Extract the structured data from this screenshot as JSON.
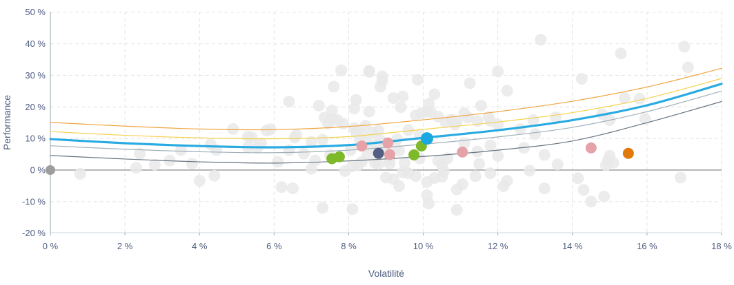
{
  "chart_data": {
    "type": "scatter",
    "title": "",
    "xlabel": "Volatilité",
    "ylabel": "Performance",
    "xlim": [
      0,
      18
    ],
    "ylim": [
      -20,
      50
    ],
    "grid": true,
    "legend": "none",
    "x_tick_values": [
      0,
      2,
      4,
      6,
      8,
      10,
      12,
      14,
      16,
      18
    ],
    "x_tick_labels": [
      "0 %",
      "2 %",
      "4 %",
      "6 %",
      "8 %",
      "10 %",
      "12 %",
      "14 %",
      "16 %",
      "18 %"
    ],
    "y_tick_values": [
      50,
      40,
      30,
      20,
      10,
      0,
      -10,
      -20
    ],
    "y_tick_labels": [
      "50 %",
      "40 %",
      "30 %",
      "20 %",
      "10 %",
      "0 %",
      "-10 %",
      "-20 %"
    ],
    "zero_line": {
      "y": 0,
      "color": "#9e9e9e"
    },
    "curves": [
      {
        "name": "band-lower-outer",
        "color": "#66737f",
        "width": 1.2,
        "x": [
          0,
          2,
          4,
          6,
          8,
          10,
          12,
          14,
          16,
          18
        ],
        "y": [
          4.6,
          3.5,
          2.6,
          2.2,
          2.9,
          4.3,
          6.3,
          9.2,
          15.0,
          21.7
        ]
      },
      {
        "name": "band-lower-inner",
        "color": "#9fb0ba",
        "width": 1.2,
        "x": [
          0,
          2,
          4,
          6,
          8,
          10,
          12,
          14,
          16,
          18
        ],
        "y": [
          7.7,
          6.6,
          5.8,
          5.5,
          6.3,
          8.2,
          10.5,
          13.5,
          18.5,
          25.0
        ]
      },
      {
        "name": "band-upper-inner",
        "color": "#f4d24d",
        "width": 1.2,
        "x": [
          0,
          2,
          4,
          6,
          8,
          10,
          12,
          14,
          16,
          18
        ],
        "y": [
          12.2,
          11.0,
          10.2,
          9.9,
          10.6,
          12.9,
          15.2,
          18.2,
          22.7,
          29.0
        ]
      },
      {
        "name": "band-upper-outer",
        "color": "#f0a43f",
        "width": 1.2,
        "x": [
          0,
          2,
          4,
          6,
          8,
          10,
          12,
          14,
          16,
          18
        ],
        "y": [
          15.1,
          13.9,
          13.0,
          12.8,
          13.8,
          15.9,
          18.5,
          21.8,
          26.3,
          32.2
        ]
      },
      {
        "name": "expected-performance",
        "color": "#29abe2",
        "width": 3.2,
        "x": [
          0,
          2,
          4,
          6,
          8,
          10,
          12,
          14,
          16,
          18
        ],
        "y": [
          9.8,
          8.5,
          7.6,
          7.2,
          7.9,
          10.2,
          12.6,
          15.8,
          20.5,
          27.3
        ]
      }
    ],
    "cloud": {
      "name": "simulated-portfolios",
      "color": "#e9e9e9",
      "radius": 8.5,
      "opacity": 0.85,
      "points": [
        [
          0.8,
          -1.2
        ],
        [
          2.3,
          0.7
        ],
        [
          2.4,
          5.2
        ],
        [
          2.8,
          1.7
        ],
        [
          3.2,
          3.0
        ],
        [
          3.5,
          6.3
        ],
        [
          3.8,
          2.0
        ],
        [
          4.0,
          -3.4
        ],
        [
          4.3,
          8.1
        ],
        [
          4.4,
          -1.8
        ],
        [
          4.45,
          6.3
        ],
        [
          4.9,
          13.0
        ],
        [
          5.3,
          10.6
        ],
        [
          5.3,
          7.2
        ],
        [
          5.4,
          10.3
        ],
        [
          5.55,
          7.0
        ],
        [
          5.65,
          8.5
        ],
        [
          5.8,
          12.5
        ],
        [
          5.9,
          12.9
        ],
        [
          6.1,
          2.6
        ],
        [
          6.2,
          -5.4
        ],
        [
          6.4,
          6.3
        ],
        [
          6.4,
          21.7
        ],
        [
          6.5,
          -5.8
        ],
        [
          6.55,
          10.3
        ],
        [
          6.6,
          11.1
        ],
        [
          6.8,
          5.2
        ],
        [
          7.0,
          8.9
        ],
        [
          7.0,
          0.4
        ],
        [
          7.1,
          3.0
        ],
        [
          7.2,
          20.4
        ],
        [
          7.3,
          9.6
        ],
        [
          7.3,
          -12.0
        ],
        [
          7.35,
          16.6
        ],
        [
          7.45,
          14.7
        ],
        [
          7.5,
          4.8
        ],
        [
          7.55,
          18.8
        ],
        [
          7.55,
          16.2
        ],
        [
          7.6,
          26.4
        ],
        [
          7.7,
          15.8
        ],
        [
          7.8,
          31.6
        ],
        [
          7.85,
          14.7
        ],
        [
          7.9,
          -0.3
        ],
        [
          8.05,
          6.3
        ],
        [
          8.1,
          1.2
        ],
        [
          8.1,
          -12.4
        ],
        [
          8.15,
          19.5
        ],
        [
          8.15,
          13.3
        ],
        [
          8.2,
          22.2
        ],
        [
          8.2,
          11.8
        ],
        [
          8.25,
          1.5
        ],
        [
          8.3,
          9.8
        ],
        [
          8.35,
          2.6
        ],
        [
          8.35,
          11.4
        ],
        [
          8.45,
          14.0
        ],
        [
          8.5,
          8.9
        ],
        [
          8.5,
          4.6
        ],
        [
          8.55,
          31.1
        ],
        [
          8.55,
          18.5
        ],
        [
          8.55,
          31.4
        ],
        [
          8.6,
          7.0
        ],
        [
          8.65,
          11.9
        ],
        [
          8.7,
          2.3
        ],
        [
          8.75,
          8.0
        ],
        [
          8.8,
          1.9
        ],
        [
          8.8,
          12.5
        ],
        [
          8.85,
          26.4
        ],
        [
          8.85,
          9.4
        ],
        [
          8.9,
          29.7
        ],
        [
          8.9,
          28.3
        ],
        [
          8.95,
          6.5
        ],
        [
          9.0,
          -2.4
        ],
        [
          9.1,
          2.0
        ],
        [
          9.1,
          3.4
        ],
        [
          9.2,
          -2.9
        ],
        [
          9.2,
          22.8
        ],
        [
          9.25,
          7.0
        ],
        [
          9.3,
          9.8
        ],
        [
          9.35,
          -5.1
        ],
        [
          9.35,
          6.1
        ],
        [
          9.4,
          19.9
        ],
        [
          9.45,
          23.3
        ],
        [
          9.45,
          -0.7
        ],
        [
          9.5,
          2.3
        ],
        [
          9.6,
          -1.0
        ],
        [
          9.6,
          12.6
        ],
        [
          9.8,
          -1.9
        ],
        [
          9.8,
          17.3
        ],
        [
          9.85,
          28.6
        ],
        [
          9.9,
          11.2
        ],
        [
          9.9,
          3.7
        ],
        [
          9.95,
          18.0
        ],
        [
          10.1,
          18.5
        ],
        [
          10.1,
          -3.8
        ],
        [
          10.1,
          -8.0
        ],
        [
          10.15,
          -10.6
        ],
        [
          10.15,
          21.0
        ],
        [
          10.2,
          18.4
        ],
        [
          10.3,
          24.0
        ],
        [
          10.3,
          -2.5
        ],
        [
          10.4,
          16.9
        ],
        [
          10.4,
          3.0
        ],
        [
          10.5,
          -2.1
        ],
        [
          10.5,
          1.5
        ],
        [
          10.55,
          -0.4
        ],
        [
          10.6,
          15.1
        ],
        [
          10.65,
          3.7
        ],
        [
          10.75,
          16.0
        ],
        [
          10.85,
          14.4
        ],
        [
          10.9,
          15.5
        ],
        [
          10.9,
          -6.2
        ],
        [
          10.9,
          -12.6
        ],
        [
          11.05,
          -4.5
        ],
        [
          11.1,
          18.0
        ],
        [
          11.1,
          8.5
        ],
        [
          11.2,
          16.6
        ],
        [
          11.25,
          27.5
        ],
        [
          11.4,
          -1.9
        ],
        [
          11.45,
          15.5
        ],
        [
          11.45,
          5.9
        ],
        [
          11.5,
          2.0
        ],
        [
          11.55,
          20.4
        ],
        [
          11.75,
          16.8
        ],
        [
          11.8,
          -1.0
        ],
        [
          11.8,
          15.5
        ],
        [
          11.8,
          7.8
        ],
        [
          12.0,
          14.4
        ],
        [
          12.0,
          4.5
        ],
        [
          12.0,
          31.2
        ],
        [
          12.15,
          -5.1
        ],
        [
          12.25,
          25.1
        ],
        [
          12.25,
          -3.4
        ],
        [
          12.6,
          13.0
        ],
        [
          12.7,
          7.0
        ],
        [
          12.85,
          -0.2
        ],
        [
          12.95,
          15.8
        ],
        [
          13.0,
          11.4
        ],
        [
          13.15,
          41.3
        ],
        [
          13.25,
          4.8
        ],
        [
          13.25,
          -5.8
        ],
        [
          13.55,
          16.7
        ],
        [
          13.6,
          1.8
        ],
        [
          14.15,
          -2.6
        ],
        [
          14.25,
          28.9
        ],
        [
          14.3,
          -6.3
        ],
        [
          14.5,
          -10.0
        ],
        [
          14.8,
          17.7
        ],
        [
          14.85,
          -8.4
        ],
        [
          14.9,
          1.5
        ],
        [
          14.95,
          3.0
        ],
        [
          15.0,
          15.8
        ],
        [
          15.0,
          4.5
        ],
        [
          15.1,
          2.3
        ],
        [
          15.3,
          36.9
        ],
        [
          15.4,
          22.8
        ],
        [
          15.8,
          22.6
        ],
        [
          15.95,
          16.2
        ],
        [
          16.9,
          -2.4
        ],
        [
          17.0,
          39.1
        ],
        [
          17.1,
          32.5
        ]
      ]
    },
    "highlight_points": [
      {
        "name": "origin-point",
        "color": "#9d9d9d",
        "radius": 7,
        "points": [
          [
            0,
            0
          ]
        ]
      },
      {
        "name": "green-points",
        "color": "#7db928",
        "radius": 8,
        "points": [
          [
            7.55,
            3.6
          ],
          [
            7.75,
            4.2
          ],
          [
            9.75,
            4.8
          ],
          [
            9.95,
            7.6
          ]
        ]
      },
      {
        "name": "pink-points",
        "color": "#e5a2a8",
        "radius": 8,
        "points": [
          [
            8.35,
            7.6
          ],
          [
            9.05,
            8.6
          ],
          [
            9.1,
            4.9
          ],
          [
            11.05,
            5.7
          ],
          [
            14.5,
            7.0
          ]
        ]
      },
      {
        "name": "navy-point",
        "color": "#535e82",
        "radius": 8,
        "points": [
          [
            8.8,
            5.3
          ]
        ]
      },
      {
        "name": "selected-portfolio-point",
        "color": "#1ba7e0",
        "radius": 9,
        "points": [
          [
            10.1,
            10.0
          ]
        ]
      },
      {
        "name": "orange-point",
        "color": "#e2790b",
        "radius": 8,
        "points": [
          [
            15.5,
            5.3
          ]
        ]
      }
    ],
    "style": {
      "grid_color": "#e2e2e2",
      "axis_left_color": "#97a5ae",
      "axis_bottom_color": "#c9d6dd",
      "label_color": "#4d5c7f"
    }
  }
}
